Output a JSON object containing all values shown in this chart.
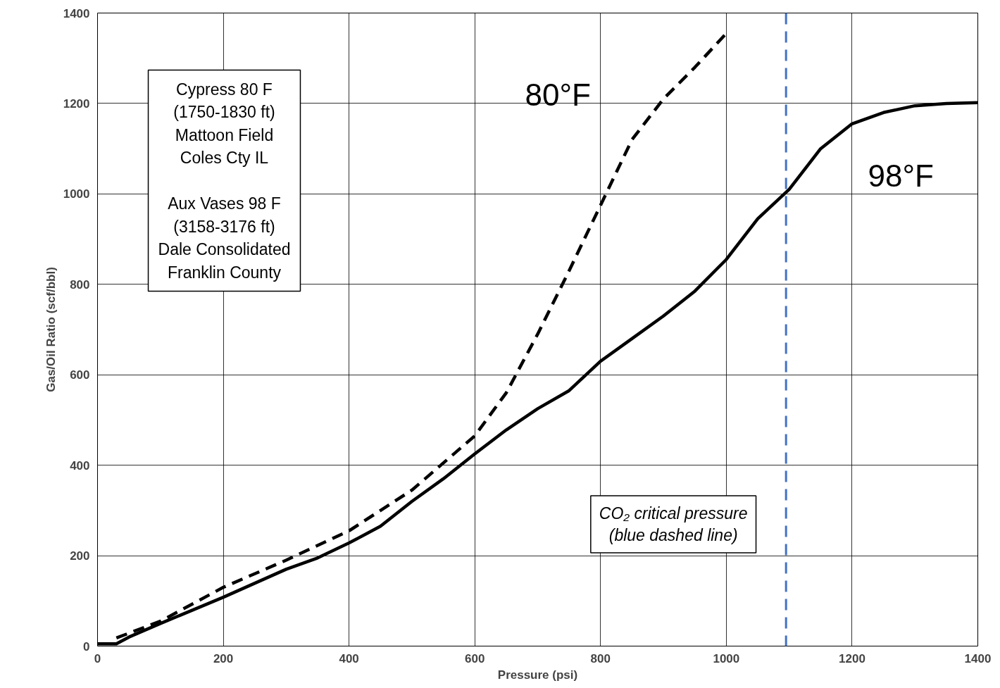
{
  "chart_data": {
    "type": "line",
    "xlabel": "Pressure (psi)",
    "ylabel": "Gas/Oil Ratio (scf/bbl)",
    "xlim": [
      0,
      1400
    ],
    "ylim": [
      0,
      1400
    ],
    "xticks": [
      0,
      200,
      400,
      600,
      800,
      1000,
      1200,
      1400
    ],
    "yticks": [
      0,
      200,
      400,
      600,
      800,
      1000,
      1200,
      1400
    ],
    "grid": true,
    "series": [
      {
        "name": "80°F",
        "color": "#000000",
        "line_style": "dashed",
        "x": [
          30,
          100,
          200,
          300,
          400,
          500,
          600,
          650,
          700,
          750,
          800,
          850,
          900,
          950,
          1000
        ],
        "values": [
          18,
          55,
          130,
          190,
          255,
          345,
          465,
          560,
          690,
          830,
          975,
          1120,
          1210,
          1280,
          1355
        ]
      },
      {
        "name": "98°F",
        "color": "#000000",
        "line_style": "solid",
        "x": [
          0,
          30,
          50,
          100,
          200,
          300,
          350,
          400,
          450,
          500,
          550,
          600,
          650,
          700,
          750,
          800,
          850,
          900,
          950,
          1000,
          1050,
          1100,
          1150,
          1200,
          1250,
          1300,
          1350,
          1400
        ],
        "values": [
          5,
          5,
          20,
          50,
          108,
          170,
          195,
          228,
          265,
          320,
          370,
          425,
          478,
          525,
          565,
          630,
          680,
          730,
          785,
          855,
          945,
          1010,
          1100,
          1155,
          1180,
          1195,
          1200,
          1202
        ]
      }
    ],
    "ref_lines": [
      {
        "axis": "x",
        "value": 1095,
        "label": "CO₂ critical pressure\n(blue dashed line)",
        "color": "#4472c4",
        "line_style": "dashed"
      }
    ],
    "annotations": [
      "Cypress 80 F\n(1750-1830 ft)\nMattoon Field\nColes Cty IL\n\nAux Vases 98 F\n(3158-3176 ft)\nDale Consolidated\nFranklin County"
    ]
  }
}
